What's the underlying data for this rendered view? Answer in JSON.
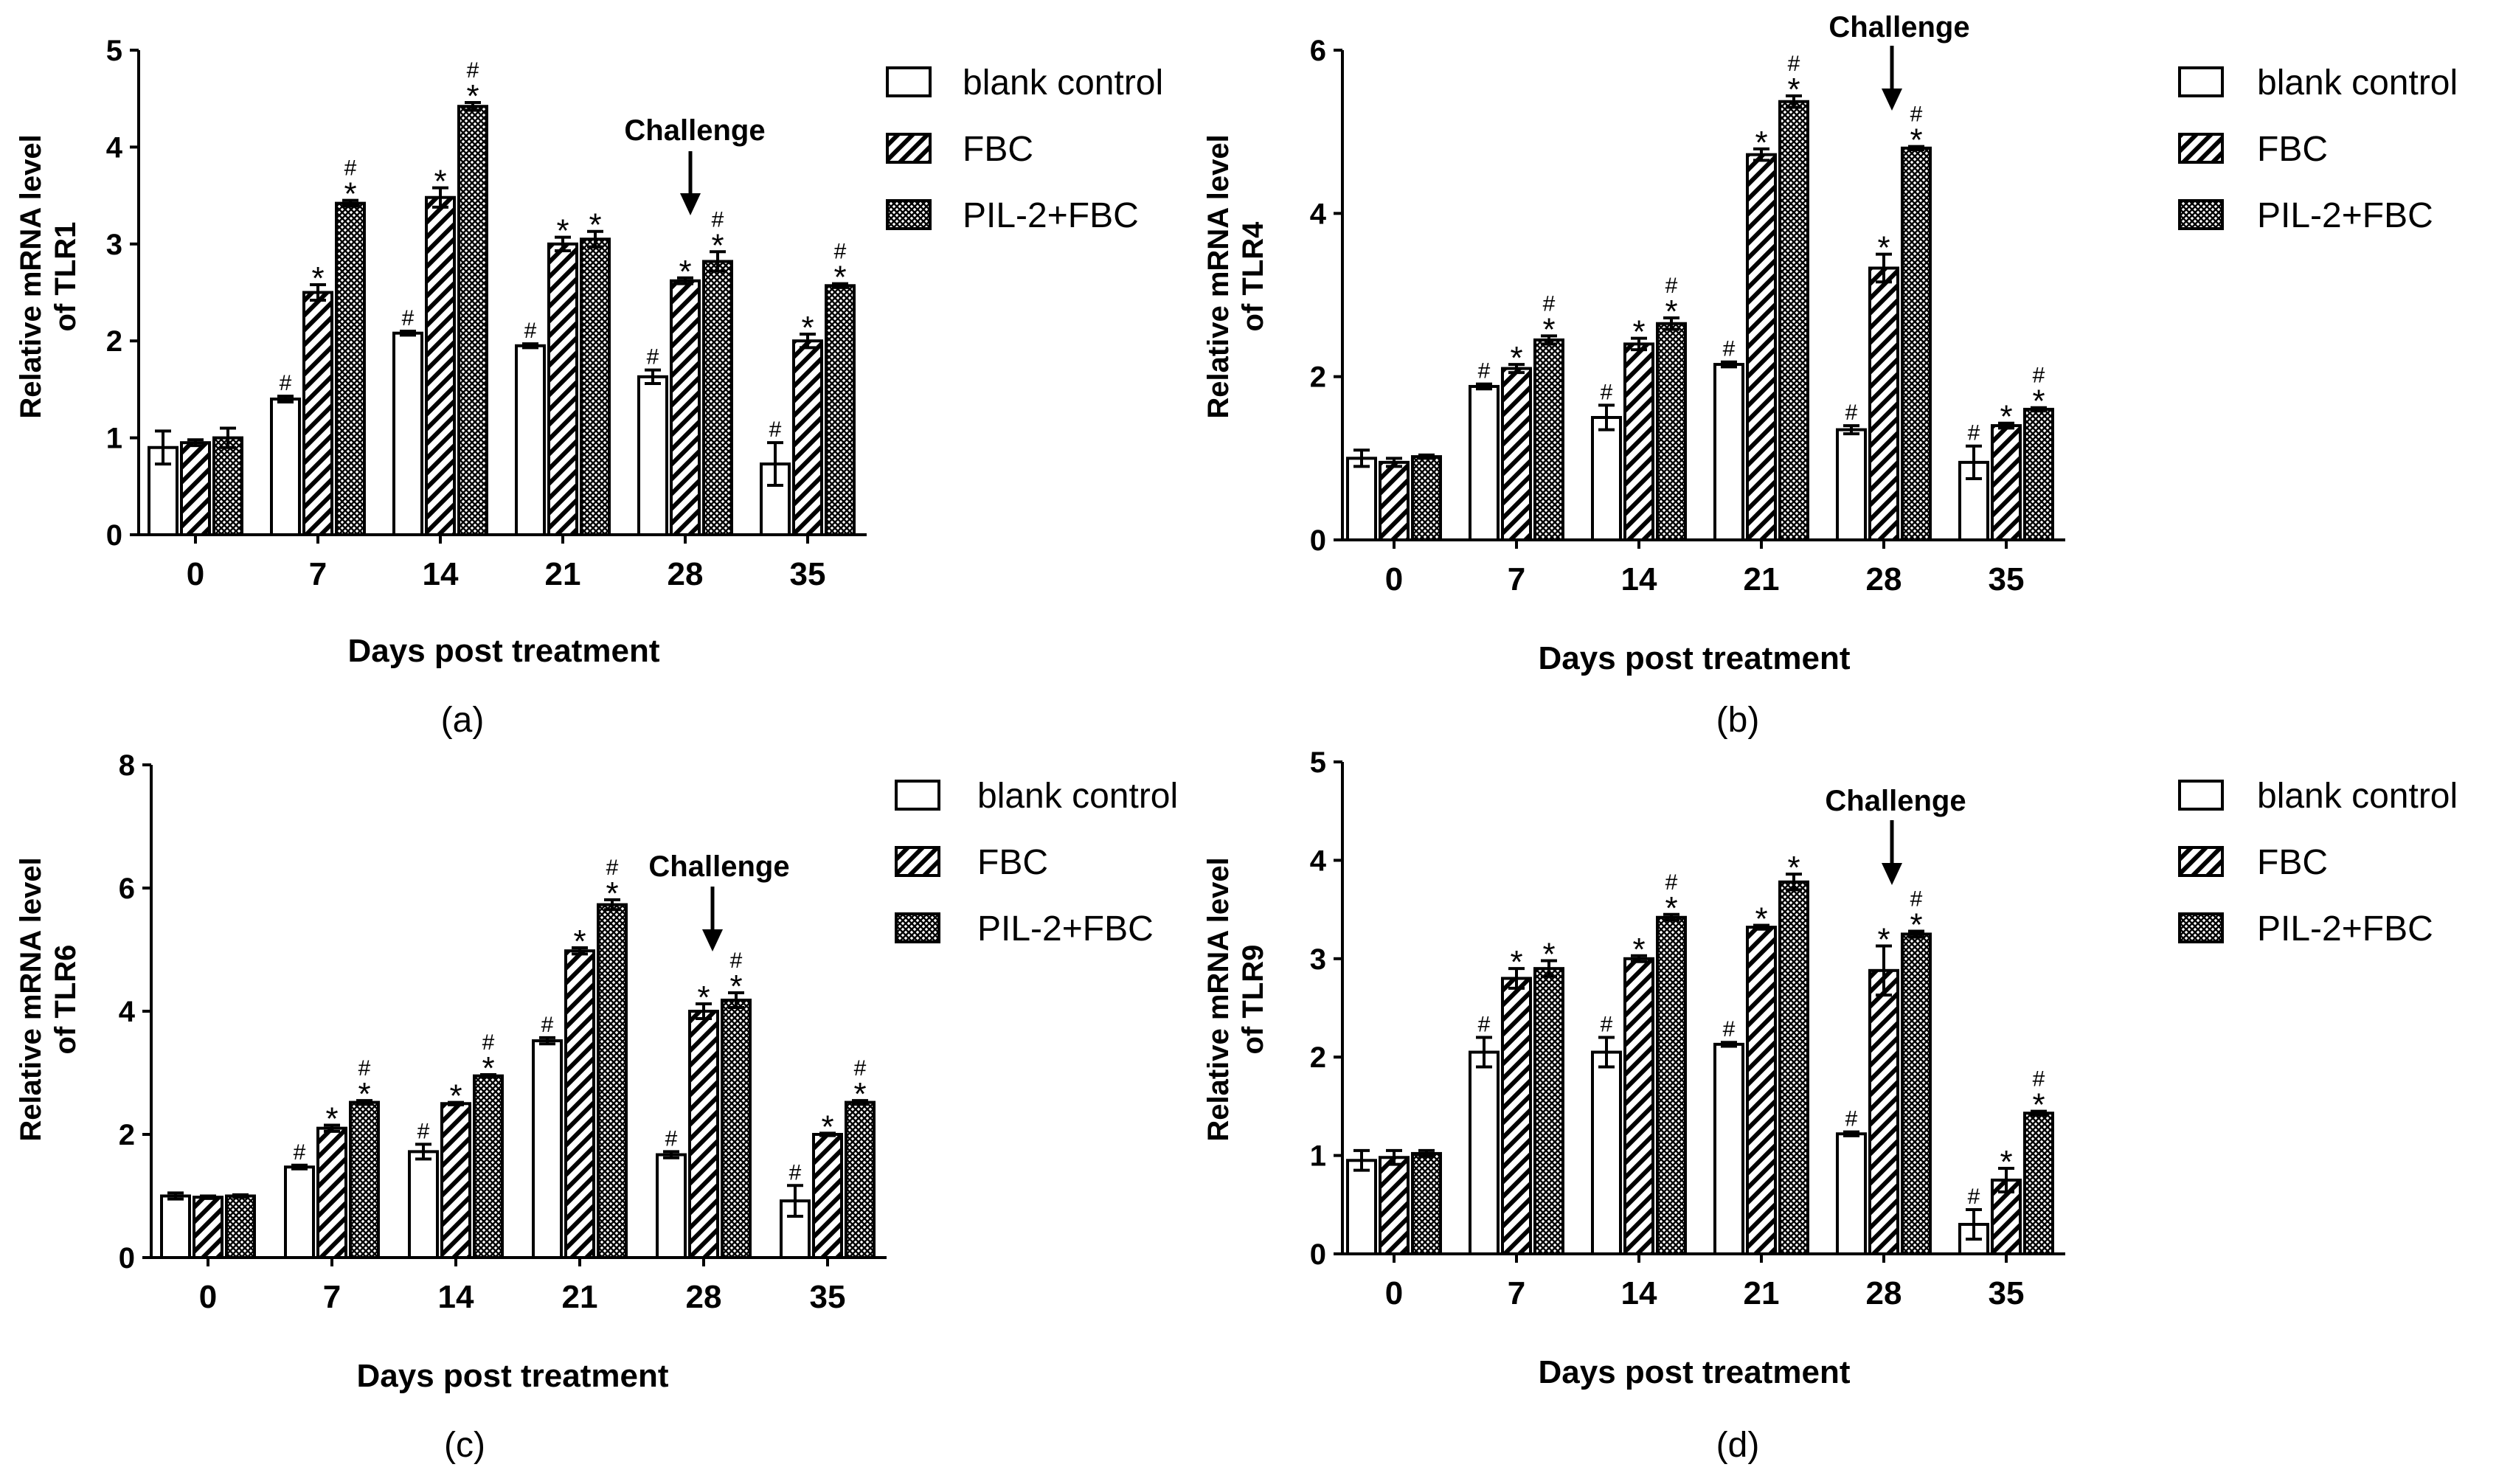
{
  "colors": {
    "ink": "#000000",
    "blank_fill": "#ffffff",
    "fbc_pattern": "diagonal-hatch",
    "pil_pattern": "crosshatch-dense"
  },
  "chart_data": [
    {
      "type": "bar",
      "panel_label": "(a)",
      "xlabel": "Days post treatment",
      "ylabel_line1": "Relative mRNA level",
      "ylabel_line2": "of TLR1",
      "categories": [
        "0",
        "7",
        "14",
        "21",
        "28",
        "35"
      ],
      "ylim": [
        0,
        5
      ],
      "yticks": [
        "0",
        "1",
        "2",
        "3",
        "4",
        "5"
      ],
      "legend": [
        "blank control",
        "FBC",
        "PIL-2+FBC"
      ],
      "legend_position": "right",
      "annotation": {
        "text": "Challenge",
        "category": "28"
      },
      "series": [
        {
          "name": "blank control",
          "values": [
            0.9,
            1.4,
            2.08,
            1.95,
            1.63,
            0.73
          ],
          "errors": [
            0.17,
            0.03,
            0.02,
            0.02,
            0.07,
            0.22
          ],
          "marks": [
            "",
            "#",
            "#",
            "#",
            "#",
            "#"
          ]
        },
        {
          "name": "FBC",
          "values": [
            0.95,
            2.5,
            3.48,
            3.0,
            2.62,
            2.0
          ],
          "errors": [
            0.03,
            0.08,
            0.1,
            0.07,
            0.03,
            0.07
          ],
          "marks": [
            "",
            "*",
            "*",
            "*",
            "*",
            "*"
          ]
        },
        {
          "name": "PIL-2+FBC",
          "values": [
            1.0,
            3.42,
            4.42,
            3.05,
            2.82,
            2.57
          ],
          "errors": [
            0.1,
            0.03,
            0.04,
            0.08,
            0.1,
            0.02
          ],
          "marks": [
            "",
            "#*",
            "#*",
            "*",
            "#*",
            "#*"
          ]
        }
      ]
    },
    {
      "type": "bar",
      "panel_label": "(b)",
      "xlabel": "Days post treatment",
      "ylabel_line1": "Relative mRNA level",
      "ylabel_line2": "of TLR4",
      "categories": [
        "0",
        "7",
        "14",
        "21",
        "28",
        "35"
      ],
      "ylim": [
        0,
        6
      ],
      "yticks": [
        "0",
        "2",
        "4",
        "6"
      ],
      "legend": [
        "blank control",
        "FBC",
        "PIL-2+FBC"
      ],
      "legend_position": "right",
      "annotation": {
        "text": "Challenge",
        "category": "28"
      },
      "series": [
        {
          "name": "blank control",
          "values": [
            1.0,
            1.88,
            1.5,
            2.15,
            1.35,
            0.95
          ],
          "errors": [
            0.1,
            0.03,
            0.15,
            0.03,
            0.05,
            0.2
          ],
          "marks": [
            "",
            "#",
            "#",
            "#",
            "#",
            "#"
          ]
        },
        {
          "name": "FBC",
          "values": [
            0.95,
            2.1,
            2.4,
            4.72,
            3.33,
            1.4
          ],
          "errors": [
            0.05,
            0.05,
            0.07,
            0.07,
            0.17,
            0.03
          ],
          "marks": [
            "",
            "*",
            "*",
            "*",
            "*",
            "*"
          ]
        },
        {
          "name": "PIL-2+FBC",
          "values": [
            1.02,
            2.45,
            2.65,
            5.37,
            4.8,
            1.6
          ],
          "errors": [
            0.02,
            0.05,
            0.07,
            0.07,
            0.02,
            0.02
          ],
          "marks": [
            "",
            "#*",
            "#*",
            "#*",
            "#*",
            "#*"
          ]
        }
      ]
    },
    {
      "type": "bar",
      "panel_label": "(c)",
      "xlabel": "Days post treatment",
      "ylabel_line1": "Relative mRNA level",
      "ylabel_line2": "of TLR6",
      "categories": [
        "0",
        "7",
        "14",
        "21",
        "28",
        "35"
      ],
      "ylim": [
        0,
        8
      ],
      "yticks": [
        "0",
        "2",
        "4",
        "6",
        "8"
      ],
      "legend": [
        "blank control",
        "FBC",
        "PIL-2+FBC"
      ],
      "legend_position": "right",
      "annotation": {
        "text": "Challenge",
        "category": "28"
      },
      "series": [
        {
          "name": "blank control",
          "values": [
            1.0,
            1.47,
            1.72,
            3.52,
            1.67,
            0.92
          ],
          "errors": [
            0.05,
            0.03,
            0.12,
            0.05,
            0.05,
            0.25
          ],
          "marks": [
            "",
            "#",
            "#",
            "#",
            "#",
            "#"
          ]
        },
        {
          "name": "FBC",
          "values": [
            0.98,
            2.1,
            2.5,
            4.98,
            4.0,
            2.0
          ],
          "errors": [
            0.02,
            0.05,
            0.02,
            0.05,
            0.12,
            0.02
          ],
          "marks": [
            "",
            "*",
            "*",
            "*",
            "*",
            "*"
          ]
        },
        {
          "name": "PIL-2+FBC",
          "values": [
            1.0,
            2.52,
            2.95,
            5.73,
            4.18,
            2.52
          ],
          "errors": [
            0.02,
            0.03,
            0.02,
            0.08,
            0.12,
            0.03
          ],
          "marks": [
            "",
            "#*",
            "#*",
            "#*",
            "#*",
            "#*"
          ]
        }
      ]
    },
    {
      "type": "bar",
      "panel_label": "(d)",
      "xlabel": "Days post treatment",
      "ylabel_line1": "Relative mRNA level",
      "ylabel_line2": "of TLR9",
      "categories": [
        "0",
        "7",
        "14",
        "21",
        "28",
        "35"
      ],
      "ylim": [
        0,
        5
      ],
      "yticks": [
        "0",
        "1",
        "2",
        "3",
        "4",
        "5"
      ],
      "legend": [
        "blank control",
        "FBC",
        "PIL-2+FBC"
      ],
      "legend_position": "right",
      "annotation": {
        "text": "Challenge",
        "category": "28"
      },
      "series": [
        {
          "name": "blank control",
          "values": [
            0.95,
            2.05,
            2.05,
            2.13,
            1.22,
            0.3
          ],
          "errors": [
            0.1,
            0.15,
            0.15,
            0.02,
            0.02,
            0.15
          ],
          "marks": [
            "",
            "#",
            "#",
            "#",
            "#",
            "#"
          ]
        },
        {
          "name": "FBC",
          "values": [
            0.98,
            2.8,
            3.0,
            3.32,
            2.88,
            0.75
          ],
          "errors": [
            0.07,
            0.1,
            0.03,
            0.02,
            0.25,
            0.12
          ],
          "marks": [
            "",
            "*",
            "*",
            "*",
            "*",
            "*"
          ]
        },
        {
          "name": "PIL-2+FBC",
          "values": [
            1.02,
            2.9,
            3.42,
            3.78,
            3.25,
            1.43
          ],
          "errors": [
            0.03,
            0.08,
            0.03,
            0.08,
            0.03,
            0.02
          ],
          "marks": [
            "",
            "*",
            "#*",
            "*",
            "#*",
            "#*"
          ]
        }
      ]
    }
  ]
}
